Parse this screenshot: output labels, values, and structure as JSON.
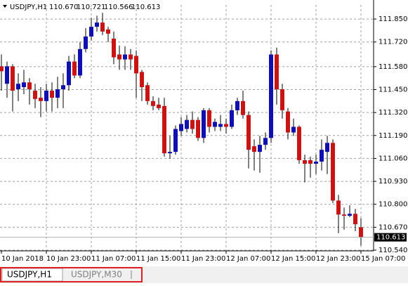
{
  "chart_data": {
    "type": "candlestick",
    "symbol": "USDJPY,H1",
    "header_values": [
      {
        "value": 110.67,
        "label": "110.670"
      },
      {
        "value": 110.721,
        "label": "110.721"
      },
      {
        "value": 110.566,
        "label": "110.566"
      },
      {
        "value": 110.613,
        "label": "110.613"
      }
    ],
    "categories": [
      "10 Jan 2018",
      null,
      null,
      null,
      null,
      null,
      null,
      null,
      "10 Jan 23:00",
      null,
      null,
      null,
      null,
      null,
      null,
      null,
      "11 Jan 07:00",
      null,
      null,
      null,
      null,
      null,
      null,
      null,
      "11 Jan 15:00",
      null,
      null,
      null,
      null,
      null,
      null,
      null,
      "11 Jan 23:00",
      null,
      null,
      null,
      null,
      null,
      null,
      null,
      "12 Jan 07:00",
      null,
      null,
      null,
      null,
      null,
      null,
      null,
      "12 Jan 15:00",
      null,
      null,
      null,
      null,
      null,
      null,
      null,
      "12 Jan 23:00",
      null,
      null,
      null,
      null,
      null,
      null,
      null,
      "15 Jan 07:00"
    ],
    "open": [
      111.582,
      111.483,
      111.582,
      111.452,
      111.464,
      111.491,
      111.444,
      111.404,
      111.385,
      111.444,
      111.404,
      111.452,
      111.475,
      111.609,
      111.53,
      111.68,
      111.751,
      111.806,
      111.83,
      111.791,
      111.739,
      111.649,
      111.621,
      111.649,
      111.641,
      111.55,
      111.475,
      111.385,
      111.365,
      111.357,
      111.089,
      111.097,
      111.215,
      111.227,
      111.278,
      111.278,
      111.176,
      111.333,
      111.239,
      111.239,
      111.255,
      111.239,
      111.333,
      111.385,
      111.306,
      111.129,
      111.097,
      111.137,
      111.176,
      111.649,
      111.452,
      111.326,
      111.207,
      111.239,
      111.05,
      111.05,
      111.03,
      111.042,
      111.097,
      111.148,
      110.821,
      110.742,
      110.735,
      110.746,
      110.67
    ],
    "high": [
      111.649,
      111.609,
      111.594,
      111.542,
      111.562,
      111.515,
      111.483,
      111.464,
      111.483,
      111.491,
      111.523,
      111.542,
      111.641,
      111.649,
      111.72,
      111.798,
      111.857,
      111.869,
      111.885,
      111.806,
      111.779,
      111.7,
      111.696,
      111.68,
      111.672,
      111.562,
      111.491,
      111.412,
      111.404,
      111.404,
      111.188,
      111.247,
      111.294,
      111.306,
      111.326,
      111.294,
      111.345,
      111.345,
      111.286,
      111.306,
      111.286,
      111.365,
      111.404,
      111.444,
      111.326,
      111.168,
      111.188,
      111.207,
      111.672,
      111.688,
      111.483,
      111.345,
      111.286,
      111.247,
      111.081,
      111.07,
      111.081,
      111.168,
      111.188,
      111.168,
      110.853,
      110.782,
      110.794,
      110.774,
      110.721
    ],
    "low": [
      111.444,
      111.404,
      111.326,
      111.385,
      111.424,
      111.365,
      111.345,
      111.294,
      111.326,
      111.326,
      111.345,
      111.345,
      111.444,
      111.515,
      111.515,
      111.661,
      111.728,
      111.779,
      111.759,
      111.72,
      111.594,
      111.562,
      111.562,
      111.562,
      111.404,
      111.385,
      111.365,
      111.333,
      111.333,
      111.07,
      111.058,
      111.081,
      111.188,
      111.207,
      111.2,
      111.16,
      111.148,
      111.207,
      111.215,
      111.215,
      111.2,
      111.227,
      111.306,
      111.286,
      111.003,
      110.991,
      110.979,
      111.109,
      111.148,
      111.365,
      111.286,
      111.168,
      111.188,
      111.03,
      110.924,
      110.951,
      110.971,
      110.991,
      110.971,
      110.806,
      110.636,
      110.656,
      110.727,
      110.648,
      110.566
    ],
    "close": [
      111.554,
      111.582,
      111.444,
      111.483,
      111.491,
      111.452,
      111.397,
      111.385,
      111.444,
      111.404,
      111.452,
      111.475,
      111.609,
      111.53,
      111.68,
      111.751,
      111.806,
      111.83,
      111.779,
      111.767,
      111.633,
      111.621,
      111.649,
      111.621,
      111.542,
      111.464,
      111.385,
      111.357,
      111.345,
      111.089,
      111.097,
      111.227,
      111.255,
      111.278,
      111.227,
      111.176,
      111.333,
      111.239,
      111.267,
      111.255,
      111.239,
      111.333,
      111.385,
      111.306,
      111.109,
      111.097,
      111.137,
      111.176,
      111.649,
      111.452,
      111.333,
      111.207,
      111.239,
      111.05,
      111.03,
      111.03,
      111.042,
      111.109,
      111.148,
      110.821,
      110.742,
      110.735,
      110.746,
      110.687,
      110.613
    ],
    "up_color": "#1010b0",
    "down_color": "#c81414",
    "ylim": [
      110.536,
      111.93
    ],
    "yticks": [
      {
        "value": 111.85,
        "label": "111.850"
      },
      {
        "value": 111.72,
        "label": "111.720"
      },
      {
        "value": 111.58,
        "label": "111.580"
      },
      {
        "value": 111.45,
        "label": "111.450"
      },
      {
        "value": 111.32,
        "label": "111.320"
      },
      {
        "value": 111.19,
        "label": "111.190"
      },
      {
        "value": 111.06,
        "label": "111.060"
      },
      {
        "value": 110.93,
        "label": "110.930"
      },
      {
        "value": 110.8,
        "label": "110.800"
      },
      {
        "value": 110.67,
        "label": "110.670"
      },
      {
        "value": 110.54,
        "label": "110.540"
      }
    ],
    "last_price": 110.613,
    "grid": true
  },
  "tabs": [
    "USDJPY,H1",
    "USDJPY,M30"
  ]
}
